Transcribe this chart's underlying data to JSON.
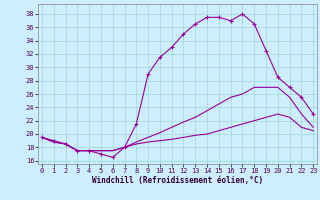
{
  "xlabel": "Windchill (Refroidissement éolien,°C)",
  "background_color": "#cceeff",
  "grid_color": "#aadddd",
  "line_color": "#990099",
  "x_hours": [
    0,
    1,
    2,
    3,
    4,
    5,
    6,
    7,
    8,
    9,
    10,
    11,
    12,
    13,
    14,
    15,
    16,
    17,
    18,
    19,
    20,
    21,
    22,
    23
  ],
  "series1": [
    19.5,
    19.0,
    18.5,
    17.5,
    17.5,
    17.0,
    16.5,
    18.0,
    21.5,
    29.0,
    31.5,
    33.0,
    35.0,
    36.5,
    37.5,
    37.5,
    37.0,
    38.0,
    36.5,
    32.5,
    28.5,
    27.0,
    25.5,
    23.0
  ],
  "series2": [
    19.5,
    18.8,
    18.5,
    17.5,
    17.5,
    17.5,
    17.5,
    18.0,
    18.8,
    19.5,
    20.2,
    21.0,
    21.8,
    22.5,
    23.5,
    24.5,
    25.5,
    26.0,
    27.0,
    27.0,
    27.0,
    25.5,
    23.0,
    21.0
  ],
  "series3": [
    19.5,
    18.8,
    18.5,
    17.5,
    17.5,
    17.5,
    17.5,
    18.0,
    18.5,
    18.8,
    19.0,
    19.2,
    19.5,
    19.8,
    20.0,
    20.5,
    21.0,
    21.5,
    22.0,
    22.5,
    23.0,
    22.5,
    21.0,
    20.5
  ],
  "ylim": [
    15.5,
    39.5
  ],
  "yticks": [
    16,
    18,
    20,
    22,
    24,
    26,
    28,
    30,
    32,
    34,
    36,
    38
  ],
  "xticks": [
    0,
    1,
    2,
    3,
    4,
    5,
    6,
    7,
    8,
    9,
    10,
    11,
    12,
    13,
    14,
    15,
    16,
    17,
    18,
    19,
    20,
    21,
    22,
    23
  ],
  "xlim": [
    -0.3,
    23.3
  ]
}
